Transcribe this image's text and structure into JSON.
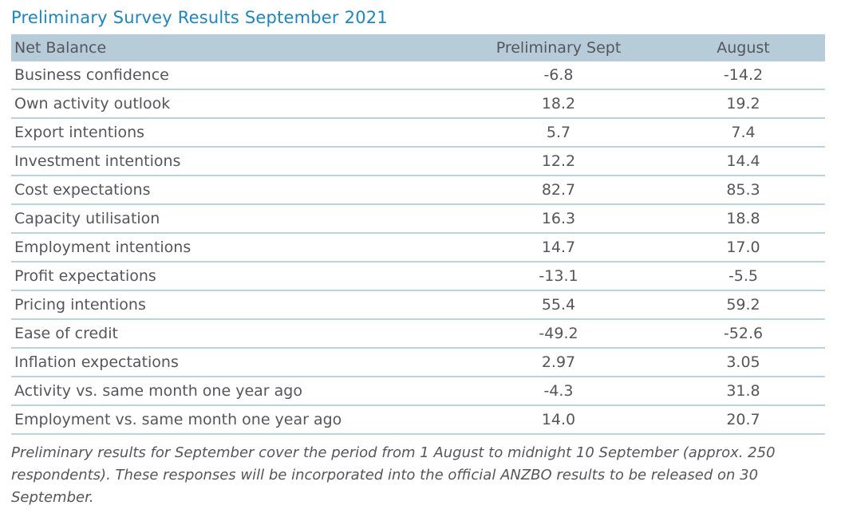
{
  "title": "Preliminary Survey Results September 2021",
  "table": {
    "columns": [
      "Net Balance",
      "Preliminary Sept",
      "August"
    ],
    "rows": [
      {
        "label": "Business confidence",
        "prelim": "-6.8",
        "august": "-14.2"
      },
      {
        "label": "Own activity outlook",
        "prelim": "18.2",
        "august": "19.2"
      },
      {
        "label": "Export intentions",
        "prelim": "5.7",
        "august": "7.4"
      },
      {
        "label": "Investment intentions",
        "prelim": "12.2",
        "august": "14.4"
      },
      {
        "label": "Cost expectations",
        "prelim": "82.7",
        "august": "85.3"
      },
      {
        "label": "Capacity utilisation",
        "prelim": "16.3",
        "august": "18.8"
      },
      {
        "label": "Employment intentions",
        "prelim": "14.7",
        "august": "17.0"
      },
      {
        "label": "Profit expectations",
        "prelim": "-13.1",
        "august": "-5.5"
      },
      {
        "label": "Pricing intentions",
        "prelim": "55.4",
        "august": "59.2"
      },
      {
        "label": "Ease of credit",
        "prelim": "-49.2",
        "august": "-52.6"
      },
      {
        "label": "Inflation expectations",
        "prelim": "2.97",
        "august": "3.05"
      },
      {
        "label": "Activity vs. same month one year ago",
        "prelim": "-4.3",
        "august": "31.8"
      },
      {
        "label": "Employment vs. same month one year ago",
        "prelim": "14.0",
        "august": "20.7"
      }
    ]
  },
  "footnote": "Preliminary results for September cover the period from 1 August to midnight 10 September (approx. 250 respondents). These responses will be incorporated into the official ANZBO results to be released on 30 September.",
  "colors": {
    "title_blue": "#1787C9",
    "header_background": "#B6CCD9",
    "row_divider": "#B9D3E0",
    "body_text": "#55565A"
  }
}
